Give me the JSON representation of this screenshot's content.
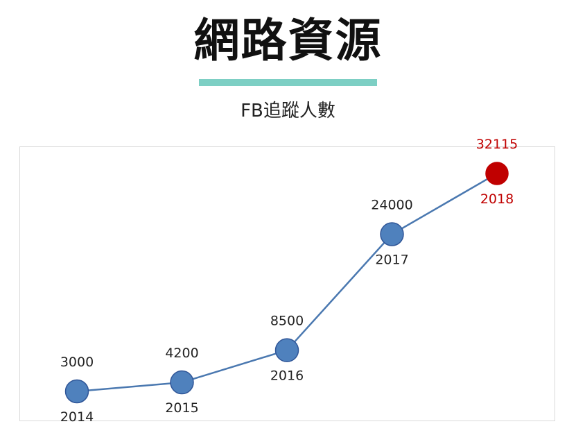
{
  "header": {
    "title": "網路資源",
    "subtitle": "FB追蹤人數"
  },
  "colors": {
    "accent_bar": "#7dcfc4",
    "series_line": "#4a78b0",
    "point_fill": "#4f81bd",
    "point_stroke": "#2f5597",
    "highlight_fill": "#c00000",
    "highlight_text": "#c00000",
    "label_text": "#222222"
  },
  "chart_data": {
    "type": "line",
    "title": "FB追蹤人數",
    "x": [
      "2014",
      "2015",
      "2016",
      "2017",
      "2018"
    ],
    "values": [
      3000,
      4200,
      8500,
      24000,
      32115
    ],
    "highlight_index": 4,
    "grid": false,
    "legend": "none"
  }
}
